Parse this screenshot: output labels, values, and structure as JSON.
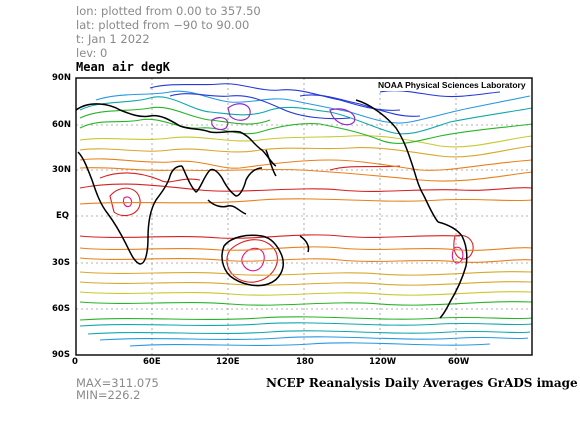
{
  "header": {
    "lon_line": "lon: plotted from 0.00 to 357.50",
    "lat_line": "lat: plotted from −90 to 90.00",
    "time_line": "t: Jan 1 2022",
    "lev_line": "lev: 0"
  },
  "plot": {
    "title": "Mean air degK",
    "credit": "NOAA Physical Sciences Laboratory",
    "lat_labels": [
      "90N",
      "60N",
      "30N",
      "EQ",
      "30S",
      "60S",
      "90S"
    ],
    "lon_labels": [
      "0",
      "60E",
      "120E",
      "180",
      "120W",
      "60W"
    ]
  },
  "stats": {
    "max": "MAX=311.075",
    "min": "MIN=226.2"
  },
  "footer": {
    "caption": "NCEP Reanalysis Daily Averages GrADS image"
  },
  "colors": {
    "coastline": "#000000",
    "tropics_red": "#d82020",
    "subtropic_orange": "#e8801c",
    "midlat_gold": "#d8a82c",
    "midlat_yellow": "#c8c830",
    "cool_green": "#28b428",
    "cool_teal": "#10a8a8",
    "cold_cyan": "#2898e0",
    "cold_blue": "#2438d8",
    "coldest_purple": "#9628c8",
    "hot_magenta": "#e0148c"
  }
}
